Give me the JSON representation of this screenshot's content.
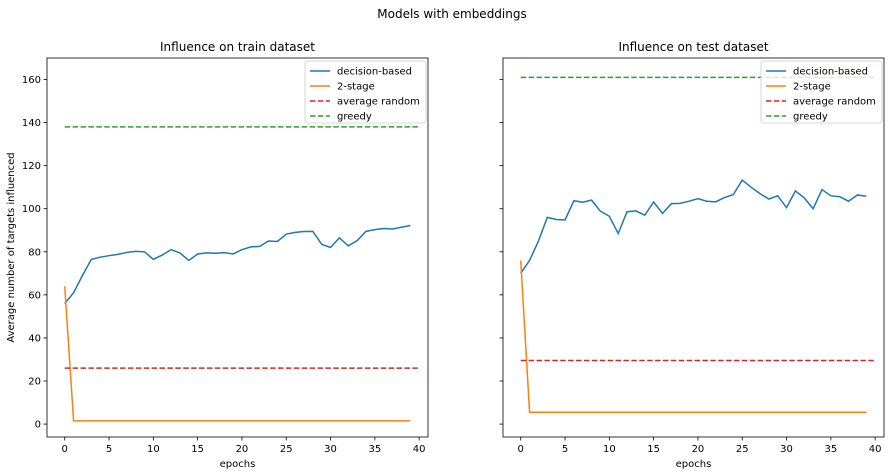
{
  "figure": {
    "suptitle": "Models with embeddings"
  },
  "colors": {
    "decision": "#1f77b4",
    "two_stage": "#ff7f0e",
    "random": "#d62728",
    "greedy": "#2ca02c"
  },
  "chart_data": [
    {
      "type": "line",
      "title": "Influence on train dataset",
      "xlabel": "epochs",
      "ylabel": "Average number of targets influenced",
      "xlim": [
        -2,
        41
      ],
      "ylim": [
        -6,
        170
      ],
      "xticks": [
        0,
        5,
        10,
        15,
        20,
        25,
        30,
        35,
        40
      ],
      "yticks": [
        0,
        20,
        40,
        60,
        80,
        100,
        120,
        140,
        160
      ],
      "legend_position": "top-right",
      "series": [
        {
          "name": "decision-based",
          "style": "solid",
          "x": [
            0,
            1,
            2,
            3,
            4,
            5,
            6,
            7,
            8,
            9,
            10,
            11,
            12,
            13,
            14,
            15,
            16,
            17,
            18,
            19,
            20,
            21,
            22,
            23,
            24,
            25,
            26,
            27,
            28,
            29,
            30,
            31,
            32,
            33,
            34,
            35,
            36,
            37,
            38,
            39
          ],
          "y": [
            56,
            61,
            69,
            76.5,
            77.5,
            78.2,
            78.8,
            79.7,
            80.2,
            80,
            76.5,
            78.5,
            81,
            79.5,
            76,
            79,
            79.5,
            79.3,
            79.6,
            79,
            81,
            82.3,
            82.5,
            85,
            84.8,
            88.2,
            89,
            89.4,
            89.5,
            83.5,
            82,
            86.5,
            82.8,
            85.2,
            89.5,
            90.3,
            90.8,
            90.6,
            91.4,
            92.2
          ]
        },
        {
          "name": "2-stage",
          "style": "solid",
          "x": [
            0,
            1,
            2,
            3,
            4,
            5,
            6,
            7,
            8,
            9,
            10,
            11,
            12,
            13,
            14,
            15,
            16,
            17,
            18,
            19,
            20,
            21,
            22,
            23,
            24,
            25,
            26,
            27,
            28,
            29,
            30,
            31,
            32,
            33,
            34,
            35,
            36,
            37,
            38,
            39
          ],
          "y": [
            64,
            1.5,
            1.5,
            1.5,
            1.5,
            1.5,
            1.5,
            1.5,
            1.5,
            1.5,
            1.5,
            1.5,
            1.5,
            1.5,
            1.5,
            1.5,
            1.5,
            1.5,
            1.5,
            1.5,
            1.5,
            1.5,
            1.5,
            1.5,
            1.5,
            1.5,
            1.5,
            1.5,
            1.5,
            1.5,
            1.5,
            1.5,
            1.5,
            1.5,
            1.5,
            1.5,
            1.5,
            1.5,
            1.5,
            1.5
          ]
        },
        {
          "name": "average random",
          "style": "dashed",
          "x": [
            0,
            40
          ],
          "y": [
            26,
            26
          ]
        },
        {
          "name": "greedy",
          "style": "dashed",
          "x": [
            0,
            40
          ],
          "y": [
            138,
            138
          ]
        }
      ]
    },
    {
      "type": "line",
      "title": "Influence on test dataset",
      "xlabel": "epochs",
      "ylabel": "",
      "xlim": [
        -2,
        41
      ],
      "ylim": [
        -6,
        170
      ],
      "xticks": [
        0,
        5,
        10,
        15,
        20,
        25,
        30,
        35,
        40
      ],
      "yticks": [
        0,
        20,
        40,
        60,
        80,
        100,
        120,
        140,
        160
      ],
      "legend_position": "top-right",
      "series": [
        {
          "name": "decision-based",
          "style": "solid",
          "x": [
            0,
            1,
            2,
            3,
            4,
            5,
            6,
            7,
            8,
            9,
            10,
            11,
            12,
            13,
            14,
            15,
            16,
            17,
            18,
            19,
            20,
            21,
            22,
            23,
            24,
            25,
            26,
            27,
            28,
            29,
            30,
            31,
            32,
            33,
            34,
            35,
            36,
            37,
            38,
            39
          ],
          "y": [
            70,
            76,
            85,
            96,
            95,
            94.8,
            103.7,
            103,
            104,
            98.8,
            96.5,
            88.5,
            98.6,
            99,
            97,
            103.1,
            97.8,
            102.4,
            102.5,
            103.5,
            104.7,
            103.5,
            103.2,
            105.2,
            106.6,
            113.3,
            110,
            107,
            104.5,
            106,
            100.5,
            108.3,
            105,
            100,
            108.9,
            106,
            105.6,
            103.5,
            106.4,
            105.8
          ]
        },
        {
          "name": "2-stage",
          "style": "solid",
          "x": [
            0,
            1,
            2,
            3,
            4,
            5,
            6,
            7,
            8,
            9,
            10,
            11,
            12,
            13,
            14,
            15,
            16,
            17,
            18,
            19,
            20,
            21,
            22,
            23,
            24,
            25,
            26,
            27,
            28,
            29,
            30,
            31,
            32,
            33,
            34,
            35,
            36,
            37,
            38,
            39
          ],
          "y": [
            76,
            5.5,
            5.5,
            5.5,
            5.5,
            5.5,
            5.5,
            5.5,
            5.5,
            5.5,
            5.5,
            5.5,
            5.5,
            5.5,
            5.5,
            5.5,
            5.5,
            5.5,
            5.5,
            5.5,
            5.5,
            5.5,
            5.5,
            5.5,
            5.5,
            5.5,
            5.5,
            5.5,
            5.5,
            5.5,
            5.5,
            5.5,
            5.5,
            5.5,
            5.5,
            5.5,
            5.5,
            5.5,
            5.5,
            5.5
          ]
        },
        {
          "name": "average random",
          "style": "dashed",
          "x": [
            0,
            40
          ],
          "y": [
            29.5,
            29.5
          ]
        },
        {
          "name": "greedy",
          "style": "dashed",
          "x": [
            0,
            40
          ],
          "y": [
            161,
            161
          ]
        }
      ]
    }
  ]
}
